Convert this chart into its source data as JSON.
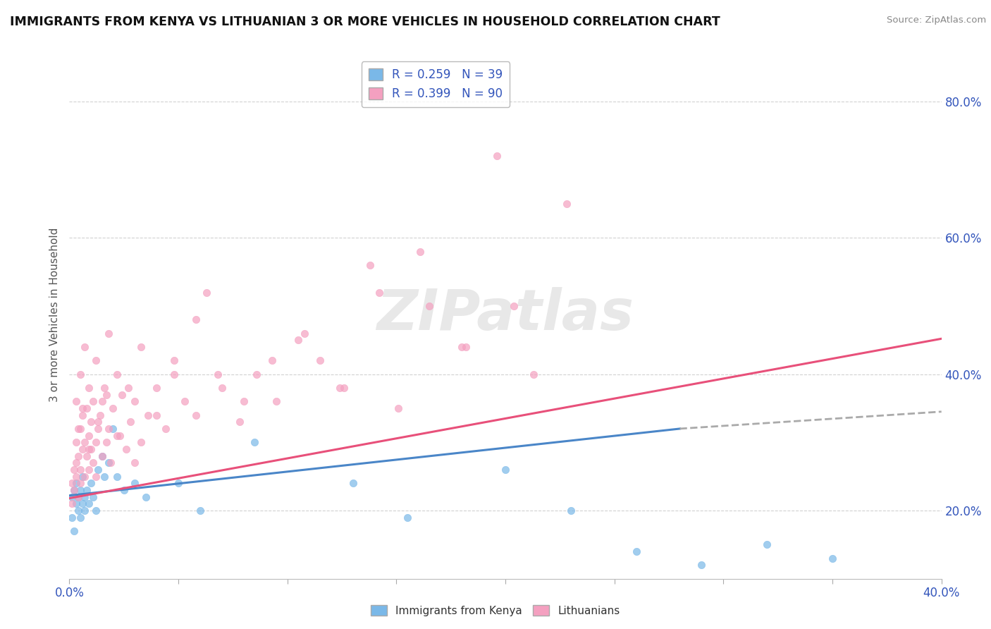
{
  "title": "IMMIGRANTS FROM KENYA VS LITHUANIAN 3 OR MORE VEHICLES IN HOUSEHOLD CORRELATION CHART",
  "source": "Source: ZipAtlas.com",
  "ylabel": "3 or more Vehicles in Household",
  "xlim": [
    0.0,
    0.4
  ],
  "ylim": [
    0.1,
    0.875
  ],
  "xticks": [
    0.0,
    0.05,
    0.1,
    0.15,
    0.2,
    0.25,
    0.3,
    0.35,
    0.4
  ],
  "yticks": [
    0.2,
    0.4,
    0.6,
    0.8
  ],
  "ytick_labels": [
    "20.0%",
    "40.0%",
    "60.0%",
    "80.0%"
  ],
  "kenya_R": 0.259,
  "kenya_N": 39,
  "lithuanian_R": 0.399,
  "lithuanian_N": 90,
  "kenya_color": "#7ab8e8",
  "lithuanian_color": "#f4a0c0",
  "kenya_line_color": "#4a86c8",
  "lithuanian_line_color": "#e8507a",
  "dashed_line_color": "#aaaaaa",
  "watermark": "ZIPatlas",
  "kenya_scatter_x": [
    0.001,
    0.001,
    0.002,
    0.002,
    0.003,
    0.003,
    0.004,
    0.004,
    0.005,
    0.005,
    0.006,
    0.006,
    0.007,
    0.007,
    0.008,
    0.009,
    0.01,
    0.011,
    0.012,
    0.013,
    0.015,
    0.016,
    0.018,
    0.02,
    0.022,
    0.025,
    0.03,
    0.035,
    0.05,
    0.06,
    0.085,
    0.13,
    0.155,
    0.2,
    0.23,
    0.26,
    0.29,
    0.32,
    0.35
  ],
  "kenya_scatter_y": [
    0.22,
    0.19,
    0.23,
    0.17,
    0.21,
    0.24,
    0.2,
    0.22,
    0.19,
    0.23,
    0.21,
    0.25,
    0.2,
    0.22,
    0.23,
    0.21,
    0.24,
    0.22,
    0.2,
    0.26,
    0.28,
    0.25,
    0.27,
    0.32,
    0.25,
    0.23,
    0.24,
    0.22,
    0.24,
    0.2,
    0.3,
    0.24,
    0.19,
    0.26,
    0.2,
    0.14,
    0.12,
    0.15,
    0.13
  ],
  "lithuanian_scatter_x": [
    0.001,
    0.001,
    0.002,
    0.002,
    0.003,
    0.003,
    0.003,
    0.004,
    0.004,
    0.005,
    0.005,
    0.005,
    0.006,
    0.006,
    0.007,
    0.007,
    0.008,
    0.008,
    0.009,
    0.009,
    0.01,
    0.01,
    0.011,
    0.011,
    0.012,
    0.012,
    0.013,
    0.014,
    0.015,
    0.016,
    0.017,
    0.018,
    0.019,
    0.02,
    0.022,
    0.024,
    0.026,
    0.028,
    0.03,
    0.033,
    0.036,
    0.04,
    0.044,
    0.048,
    0.053,
    0.058,
    0.063,
    0.07,
    0.078,
    0.086,
    0.095,
    0.105,
    0.115,
    0.126,
    0.138,
    0.151,
    0.165,
    0.18,
    0.196,
    0.213,
    0.003,
    0.005,
    0.007,
    0.009,
    0.012,
    0.015,
    0.018,
    0.022,
    0.027,
    0.033,
    0.04,
    0.048,
    0.058,
    0.068,
    0.08,
    0.093,
    0.108,
    0.124,
    0.142,
    0.161,
    0.182,
    0.204,
    0.228,
    0.004,
    0.006,
    0.009,
    0.013,
    0.017,
    0.023,
    0.03
  ],
  "lithuanian_scatter_y": [
    0.24,
    0.21,
    0.26,
    0.23,
    0.25,
    0.27,
    0.3,
    0.22,
    0.28,
    0.24,
    0.32,
    0.26,
    0.29,
    0.34,
    0.25,
    0.3,
    0.28,
    0.35,
    0.26,
    0.31,
    0.29,
    0.33,
    0.27,
    0.36,
    0.3,
    0.25,
    0.32,
    0.34,
    0.28,
    0.38,
    0.3,
    0.32,
    0.27,
    0.35,
    0.31,
    0.37,
    0.29,
    0.33,
    0.36,
    0.3,
    0.34,
    0.38,
    0.32,
    0.4,
    0.36,
    0.34,
    0.52,
    0.38,
    0.33,
    0.4,
    0.36,
    0.45,
    0.42,
    0.38,
    0.56,
    0.35,
    0.5,
    0.44,
    0.72,
    0.4,
    0.36,
    0.4,
    0.44,
    0.38,
    0.42,
    0.36,
    0.46,
    0.4,
    0.38,
    0.44,
    0.34,
    0.42,
    0.48,
    0.4,
    0.36,
    0.42,
    0.46,
    0.38,
    0.52,
    0.58,
    0.44,
    0.5,
    0.65,
    0.32,
    0.35,
    0.29,
    0.33,
    0.37,
    0.31,
    0.27
  ]
}
